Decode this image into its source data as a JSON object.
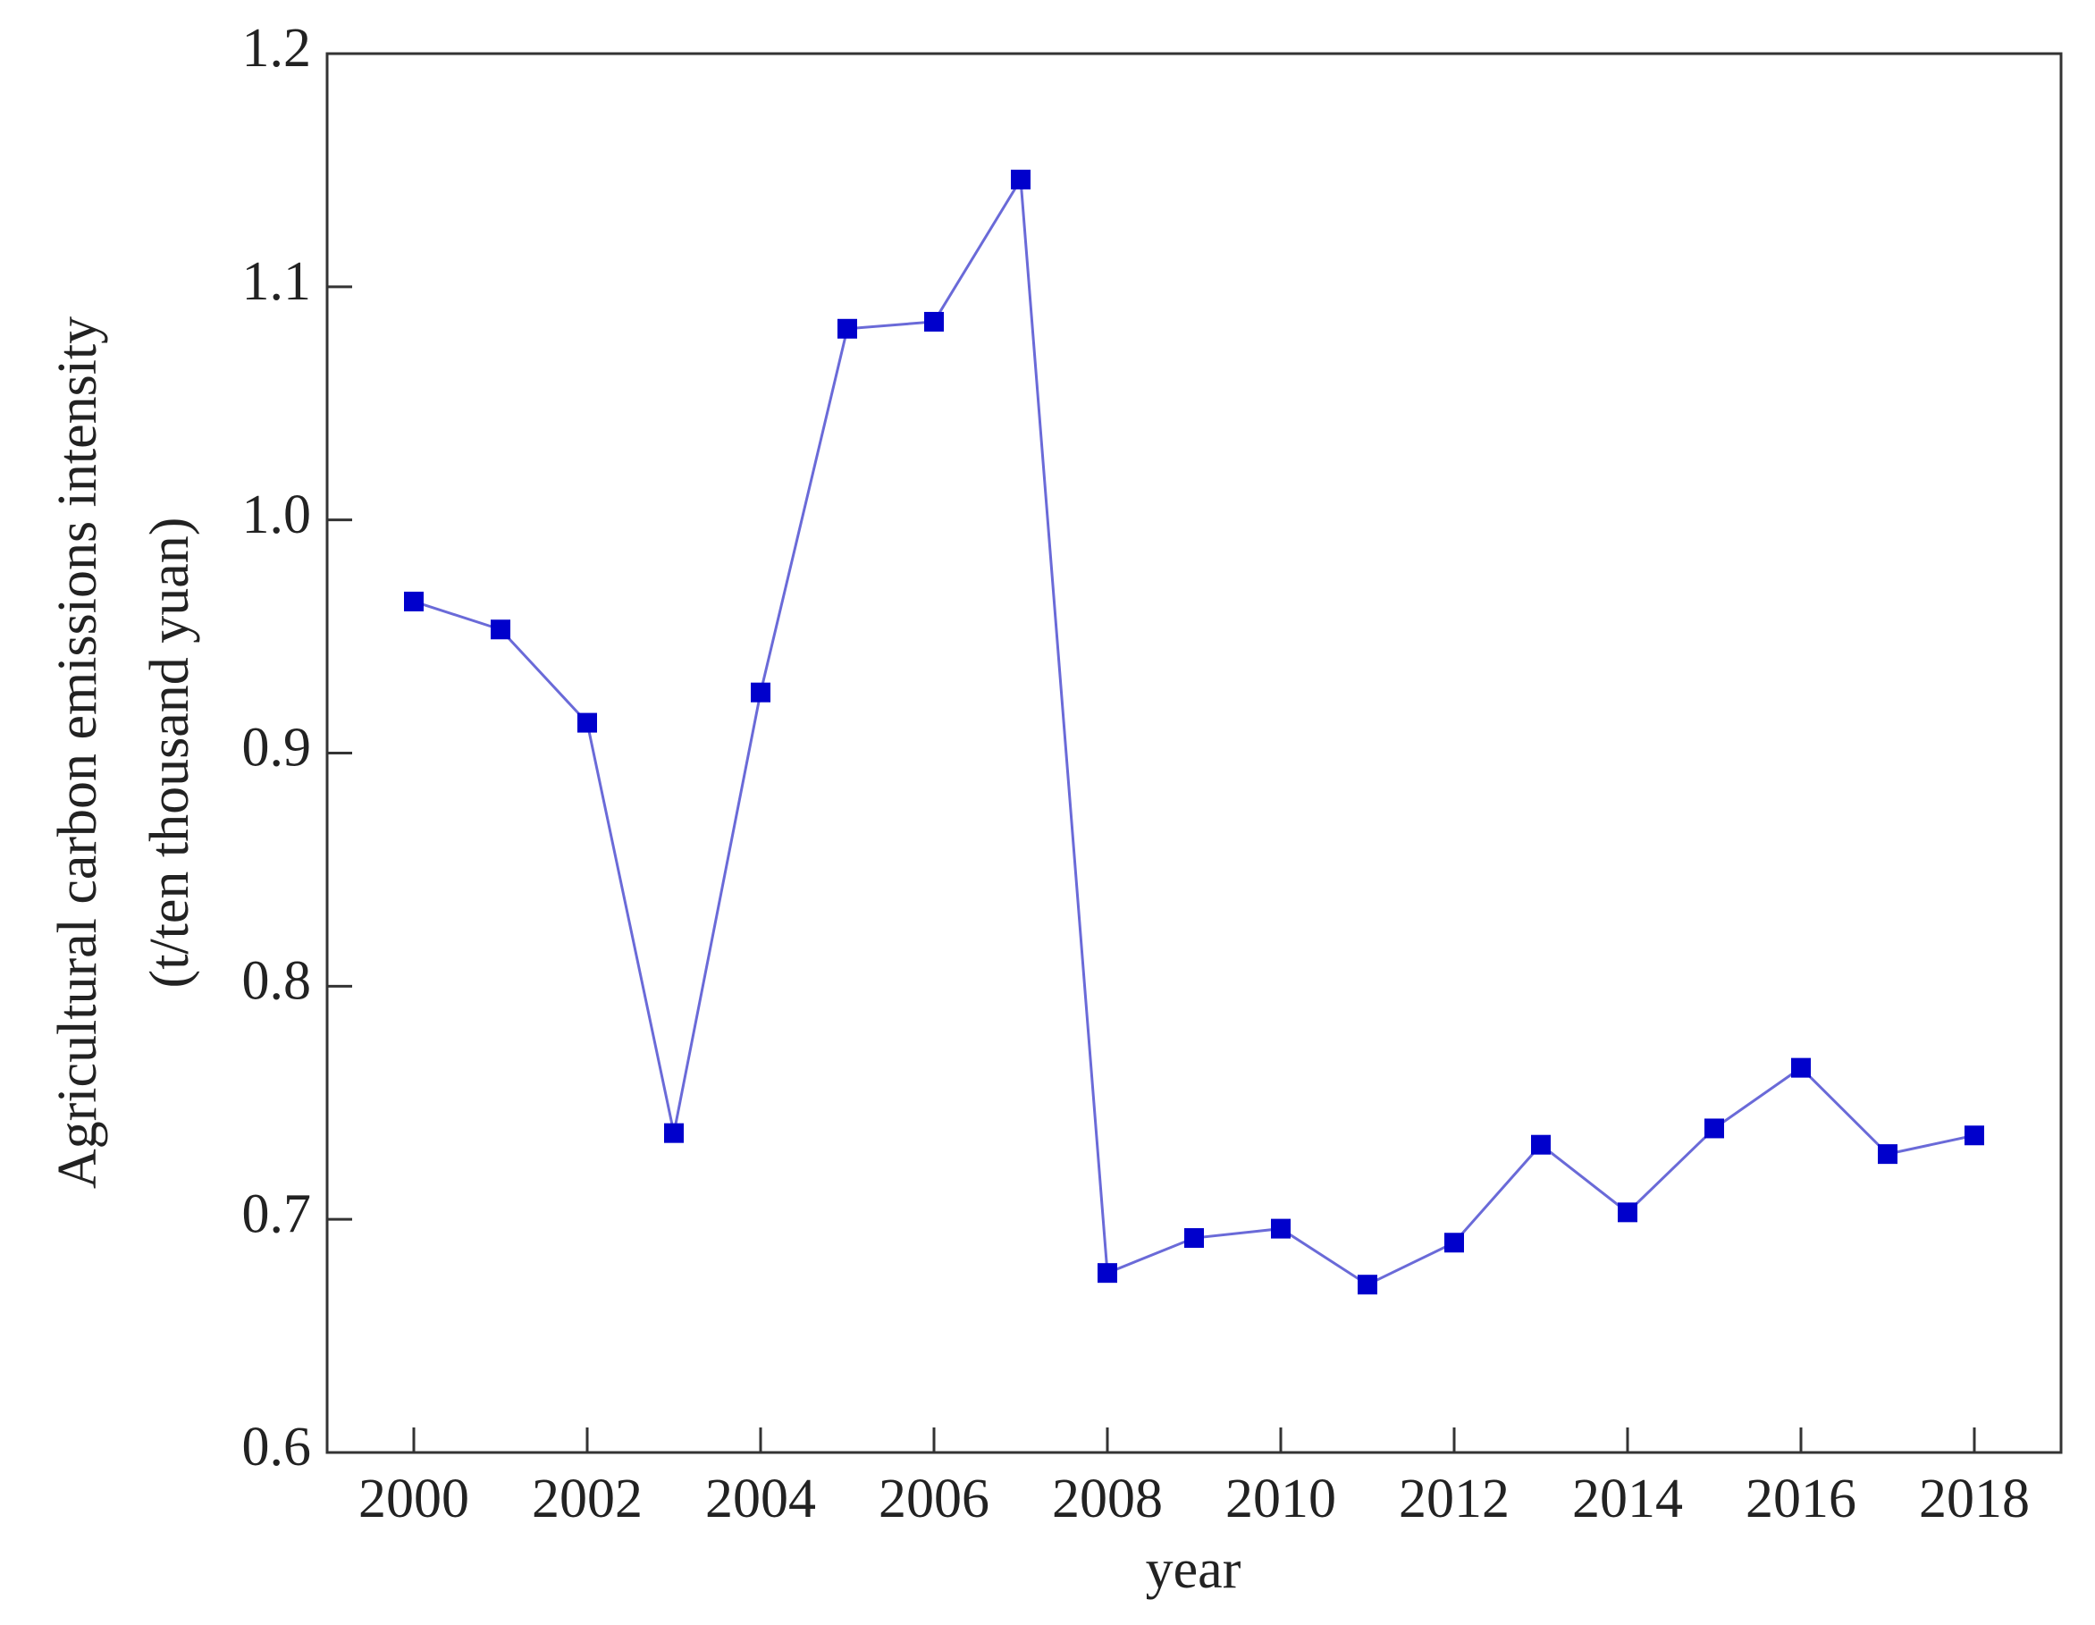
{
  "chart_data": {
    "type": "line",
    "xlabel": "year",
    "ylabel": [
      "Agricultural carbon emissions intensity",
      "(t/ten thousand yuan)"
    ],
    "x": [
      2000,
      2001,
      2002,
      2003,
      2004,
      2005,
      2006,
      2007,
      2008,
      2009,
      2010,
      2011,
      2012,
      2013,
      2014,
      2015,
      2016,
      2017,
      2018
    ],
    "series": [
      {
        "color": "#0000cc",
        "line_color": "#6a6ad8",
        "values": [
          0.965,
          0.953,
          0.913,
          0.737,
          0.926,
          1.082,
          1.085,
          1.146,
          0.677,
          0.692,
          0.696,
          0.672,
          0.69,
          0.732,
          0.703,
          0.739,
          0.765,
          0.728,
          0.736
        ]
      }
    ],
    "xlim": [
      1999,
      2019
    ],
    "xticks": [
      2000,
      2002,
      2004,
      2006,
      2008,
      2010,
      2012,
      2014,
      2016,
      2018
    ],
    "ylim": [
      0.6,
      1.2
    ],
    "yticks": [
      0.6,
      0.7,
      0.8,
      0.9,
      {
        "value": 1,
        "label": "1.0"
      },
      1.1,
      1.2
    ],
    "grid": false
  }
}
